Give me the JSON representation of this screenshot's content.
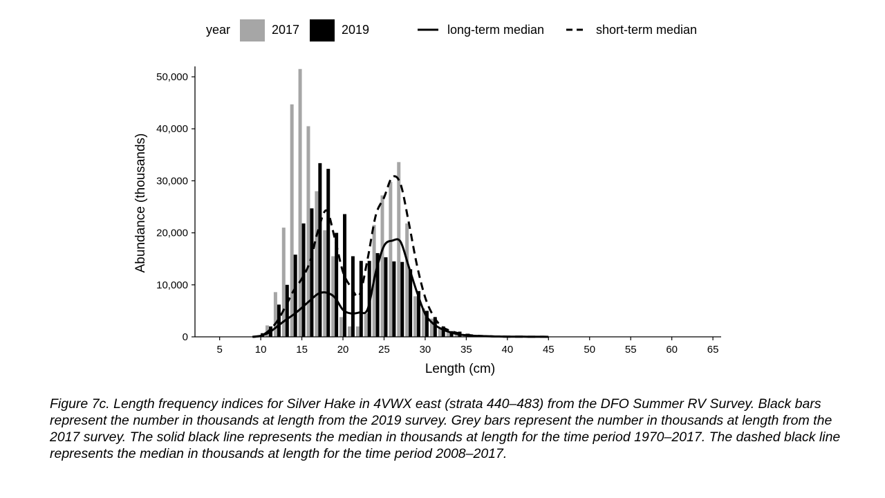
{
  "chart_data": {
    "type": "bar",
    "xlabel": "Length (cm)",
    "ylabel": "Abundance (thousands)",
    "xlim": [
      2,
      66
    ],
    "ylim": [
      0,
      52000
    ],
    "x_ticks": [
      5,
      10,
      15,
      20,
      25,
      30,
      35,
      40,
      45,
      50,
      55,
      60,
      65
    ],
    "y_ticks": [
      0,
      10000,
      20000,
      30000,
      40000,
      50000
    ],
    "y_tick_labels": [
      "0",
      "10,000",
      "20,000",
      "30,000",
      "40,000",
      "50,000"
    ],
    "legend": {
      "title": "year",
      "position": "top",
      "bar_entries": [
        {
          "label": "2017",
          "color": "#a6a6a6"
        },
        {
          "label": "2019",
          "color": "#000000"
        }
      ],
      "line_entries": [
        {
          "label": "long-term median",
          "style": "solid"
        },
        {
          "label": "short-term median",
          "style": "dashed"
        }
      ]
    },
    "grid": false,
    "x": [
      9,
      10,
      11,
      12,
      13,
      14,
      15,
      16,
      17,
      18,
      19,
      20,
      21,
      22,
      23,
      24,
      25,
      26,
      27,
      28,
      29,
      30,
      31,
      32,
      33,
      34,
      35,
      36,
      37,
      38,
      39,
      40,
      41,
      42,
      43,
      44,
      45
    ],
    "series": [
      {
        "name": "2017",
        "type": "bar",
        "color": "#a6a6a6",
        "values": [
          0,
          300,
          2200,
          8600,
          21000,
          44700,
          51500,
          40500,
          28000,
          20500,
          15500,
          3800,
          2000,
          2000,
          4500,
          21500,
          27200,
          29800,
          33600,
          21800,
          7800,
          5500,
          3500,
          1800,
          1000,
          600,
          300,
          200,
          100,
          80,
          50,
          40,
          30,
          20,
          10,
          10,
          5
        ]
      },
      {
        "name": "2019",
        "type": "bar",
        "color": "#000000",
        "values": [
          0,
          700,
          2000,
          6200,
          10000,
          15800,
          21800,
          24700,
          33400,
          32300,
          20000,
          23600,
          15500,
          14600,
          14600,
          16100,
          15300,
          14500,
          14400,
          13000,
          8800,
          5000,
          3800,
          2000,
          1100,
          1000,
          600,
          300,
          200,
          100,
          60,
          40,
          30,
          20,
          10,
          10,
          5
        ]
      },
      {
        "name": "long-term median",
        "type": "line",
        "style": "solid",
        "values": [
          0,
          200,
          800,
          2000,
          3200,
          4300,
          5600,
          7000,
          8300,
          8500,
          7600,
          5200,
          4500,
          4700,
          5300,
          12500,
          17500,
          18500,
          18300,
          13500,
          8600,
          4400,
          2500,
          1500,
          900,
          500,
          300,
          200,
          150,
          100,
          60,
          40,
          30,
          20,
          10,
          10,
          5
        ]
      },
      {
        "name": "short-term median",
        "type": "line",
        "style": "dashed",
        "values": [
          0,
          200,
          1200,
          3000,
          5800,
          8900,
          11200,
          14500,
          20600,
          24300,
          19000,
          12500,
          9500,
          8000,
          15000,
          23400,
          26800,
          30700,
          29400,
          22000,
          13800,
          7600,
          4000,
          2000,
          1200,
          700,
          400,
          250,
          150,
          100,
          60,
          40,
          30,
          20,
          10,
          10,
          5
        ]
      }
    ]
  },
  "caption": "Figure 7c. Length frequency indices for Silver Hake in 4VWX east (strata 440–483) from the DFO Summer RV Survey. Black bars represent the number in thousands at length from the 2019 survey. Grey bars represent the number in thousands at length from the 2017 survey. The solid black line represents the median in thousands at length for the time period 1970–2017. The dashed black line represents the median in thousands at length for the time period 2008–2017."
}
